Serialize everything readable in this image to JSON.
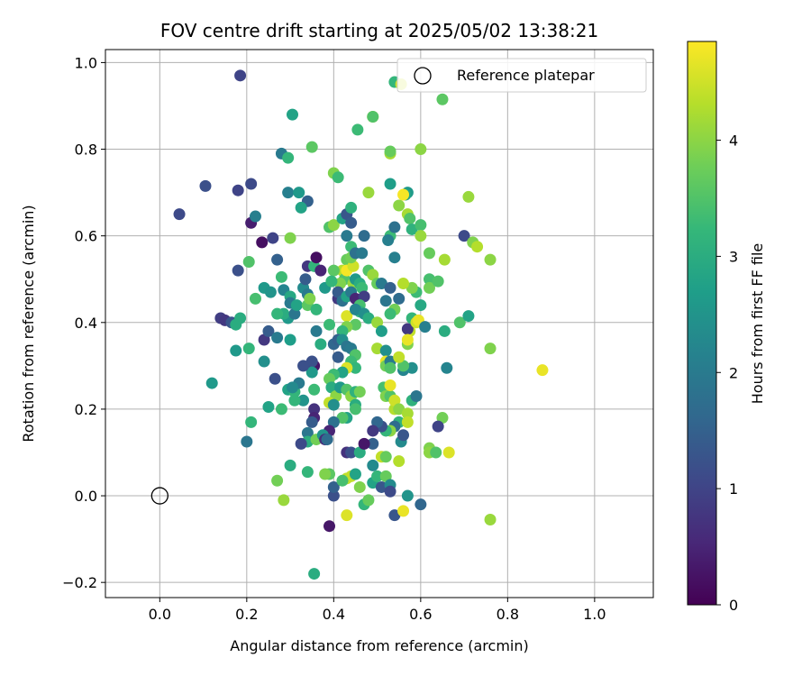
{
  "chart_data": {
    "type": "scatter",
    "title": "FOV centre drift starting at 2025/05/02 13:38:21",
    "xlabel": "Angular distance from reference (arcmin)",
    "ylabel": "Rotation from reference (arcmin)",
    "xlim": [
      -0.125,
      1.135
    ],
    "ylim": [
      -0.235,
      1.03
    ],
    "xticks": [
      0.0,
      0.2,
      0.4,
      0.6,
      0.8,
      1.0
    ],
    "xtick_labels": [
      "0.0",
      "0.2",
      "0.4",
      "0.6",
      "0.8",
      "1.0"
    ],
    "yticks": [
      -0.2,
      0.0,
      0.2,
      0.4,
      0.6,
      0.8,
      1.0
    ],
    "ytick_labels": [
      "−0.2",
      "0.0",
      "0.2",
      "0.4",
      "0.6",
      "0.8",
      "1.0"
    ],
    "grid": true,
    "legend": {
      "placement": "upper right",
      "entries": [
        "Reference platepar"
      ]
    },
    "reference_point": {
      "name": "Reference platepar",
      "x": 0.0,
      "y": 0.0
    },
    "colorbar": {
      "label": "Hours from first FF file",
      "min": 0.0,
      "max": 4.85,
      "ticks": [
        0,
        1,
        2,
        3,
        4
      ],
      "tick_labels": [
        "0",
        "1",
        "2",
        "3",
        "4"
      ],
      "colormap": [
        "#440154",
        "#482878",
        "#3e4989",
        "#31688e",
        "#26828e",
        "#1f9e89",
        "#35b779",
        "#6ece58",
        "#b5de2b",
        "#fde725"
      ]
    },
    "points": [
      [
        0.185,
        0.97,
        1.0
      ],
      [
        0.045,
        0.65,
        1.1
      ],
      [
        0.105,
        0.715,
        1.2
      ],
      [
        0.18,
        0.705,
        1.0
      ],
      [
        0.21,
        0.72,
        1.1
      ],
      [
        0.21,
        0.63,
        0.4
      ],
      [
        0.22,
        0.645,
        2.1
      ],
      [
        0.26,
        0.595,
        1.0
      ],
      [
        0.235,
        0.585,
        0.2
      ],
      [
        0.205,
        0.54,
        3.5
      ],
      [
        0.18,
        0.52,
        1.2
      ],
      [
        0.22,
        0.455,
        3.4
      ],
      [
        0.24,
        0.48,
        2.6
      ],
      [
        0.255,
        0.47,
        2.5
      ],
      [
        0.14,
        0.41,
        0.9
      ],
      [
        0.15,
        0.405,
        0.8
      ],
      [
        0.165,
        0.4,
        1.3
      ],
      [
        0.175,
        0.395,
        3.0
      ],
      [
        0.185,
        0.41,
        3.0
      ],
      [
        0.175,
        0.335,
        2.6
      ],
      [
        0.205,
        0.34,
        3.2
      ],
      [
        0.24,
        0.36,
        0.8
      ],
      [
        0.25,
        0.38,
        1.4
      ],
      [
        0.24,
        0.31,
        2.4
      ],
      [
        0.27,
        0.365,
        2.0
      ],
      [
        0.3,
        0.36,
        2.7
      ],
      [
        0.265,
        0.27,
        1.2
      ],
      [
        0.295,
        0.245,
        2.8
      ],
      [
        0.31,
        0.24,
        3.2
      ],
      [
        0.12,
        0.26,
        2.6
      ],
      [
        0.21,
        0.17,
        3.2
      ],
      [
        0.2,
        0.125,
        1.9
      ],
      [
        0.25,
        0.205,
        2.8
      ],
      [
        0.28,
        0.2,
        3.3
      ],
      [
        0.27,
        0.035,
        3.8
      ],
      [
        0.285,
        -0.01,
        4.1
      ],
      [
        0.3,
        0.07,
        3.0
      ],
      [
        0.305,
        0.88,
        2.8
      ],
      [
        0.28,
        0.79,
        2.0
      ],
      [
        0.295,
        0.78,
        3.2
      ],
      [
        0.295,
        0.7,
        2.1
      ],
      [
        0.32,
        0.7,
        2.6
      ],
      [
        0.34,
        0.68,
        1.5
      ],
      [
        0.325,
        0.665,
        2.8
      ],
      [
        0.35,
        0.805,
        3.6
      ],
      [
        0.3,
        0.595,
        3.9
      ],
      [
        0.27,
        0.545,
        1.5
      ],
      [
        0.28,
        0.505,
        3.3
      ],
      [
        0.285,
        0.475,
        2.2
      ],
      [
        0.3,
        0.46,
        2.9
      ],
      [
        0.3,
        0.445,
        2.0
      ],
      [
        0.295,
        0.41,
        2.6
      ],
      [
        0.285,
        0.42,
        3.0
      ],
      [
        0.27,
        0.42,
        3.2
      ],
      [
        0.31,
        0.42,
        1.9
      ],
      [
        0.315,
        0.44,
        2.8
      ],
      [
        0.33,
        0.48,
        2.3
      ],
      [
        0.34,
        0.465,
        2.0
      ],
      [
        0.34,
        0.44,
        3.6
      ],
      [
        0.345,
        0.455,
        3.9
      ],
      [
        0.335,
        0.5,
        1.4
      ],
      [
        0.34,
        0.53,
        0.8
      ],
      [
        0.355,
        0.53,
        3.2
      ],
      [
        0.36,
        0.55,
        0.2
      ],
      [
        0.37,
        0.52,
        0.5
      ],
      [
        0.38,
        0.48,
        2.6
      ],
      [
        0.36,
        0.43,
        3.2
      ],
      [
        0.36,
        0.38,
        2.0
      ],
      [
        0.37,
        0.35,
        3.0
      ],
      [
        0.355,
        0.3,
        0.3
      ],
      [
        0.35,
        0.31,
        1.2
      ],
      [
        0.35,
        0.285,
        2.6
      ],
      [
        0.33,
        0.3,
        1.2
      ],
      [
        0.32,
        0.26,
        2.0
      ],
      [
        0.33,
        0.22,
        2.5
      ],
      [
        0.31,
        0.22,
        3.2
      ],
      [
        0.305,
        0.25,
        2.3
      ],
      [
        0.355,
        0.245,
        3.3
      ],
      [
        0.355,
        0.2,
        0.7
      ],
      [
        0.355,
        0.18,
        0.5
      ],
      [
        0.35,
        0.17,
        1.4
      ],
      [
        0.34,
        0.145,
        1.9
      ],
      [
        0.34,
        0.125,
        3.0
      ],
      [
        0.325,
        0.12,
        1.1
      ],
      [
        0.36,
        0.13,
        3.8
      ],
      [
        0.34,
        0.055,
        3.2
      ],
      [
        0.355,
        -0.18,
        3.0
      ],
      [
        0.39,
        -0.07,
        0.3
      ],
      [
        0.39,
        0.05,
        3.6
      ],
      [
        0.38,
        0.05,
        3.9
      ],
      [
        0.4,
        0.0,
        1.2
      ],
      [
        0.4,
        0.02,
        1.5
      ],
      [
        0.39,
        0.395,
        3.3
      ],
      [
        0.4,
        0.35,
        1.6
      ],
      [
        0.41,
        0.32,
        1.4
      ],
      [
        0.4,
        0.745,
        3.9
      ],
      [
        0.41,
        0.735,
        3.3
      ],
      [
        0.39,
        0.62,
        3.5
      ],
      [
        0.4,
        0.625,
        4.0
      ],
      [
        0.42,
        0.64,
        2.8
      ],
      [
        0.43,
        0.65,
        1.3
      ],
      [
        0.44,
        0.63,
        1.4
      ],
      [
        0.44,
        0.665,
        3.1
      ],
      [
        0.43,
        0.6,
        2.0
      ],
      [
        0.44,
        0.575,
        3.3
      ],
      [
        0.43,
        0.545,
        3.7
      ],
      [
        0.42,
        0.52,
        4.3
      ],
      [
        0.425,
        0.5,
        3.5
      ],
      [
        0.415,
        0.49,
        3.9
      ],
      [
        0.43,
        0.52,
        4.8
      ],
      [
        0.445,
        0.49,
        4.1
      ],
      [
        0.445,
        0.53,
        4.5
      ],
      [
        0.4,
        0.52,
        3.6
      ],
      [
        0.395,
        0.495,
        3.2
      ],
      [
        0.41,
        0.455,
        0.8
      ],
      [
        0.41,
        0.47,
        1.4
      ],
      [
        0.42,
        0.45,
        1.8
      ],
      [
        0.43,
        0.46,
        2.8
      ],
      [
        0.43,
        0.415,
        4.6
      ],
      [
        0.44,
        0.47,
        2.0
      ],
      [
        0.45,
        0.455,
        0.5
      ],
      [
        0.45,
        0.5,
        2.6
      ],
      [
        0.46,
        0.49,
        3.0
      ],
      [
        0.465,
        0.48,
        3.3
      ],
      [
        0.47,
        0.46,
        0.9
      ],
      [
        0.46,
        0.44,
        3.4
      ],
      [
        0.46,
        0.425,
        3.1
      ],
      [
        0.45,
        0.43,
        2.2
      ],
      [
        0.47,
        0.42,
        2.4
      ],
      [
        0.48,
        0.41,
        3.0
      ],
      [
        0.45,
        0.395,
        3.6
      ],
      [
        0.43,
        0.39,
        3.9
      ],
      [
        0.42,
        0.38,
        3.2
      ],
      [
        0.41,
        0.36,
        1.5
      ],
      [
        0.42,
        0.36,
        2.4
      ],
      [
        0.43,
        0.345,
        1.9
      ],
      [
        0.44,
        0.34,
        2.0
      ],
      [
        0.45,
        0.325,
        3.5
      ],
      [
        0.44,
        0.31,
        3.3
      ],
      [
        0.45,
        0.295,
        3.2
      ],
      [
        0.43,
        0.295,
        4.6
      ],
      [
        0.42,
        0.285,
        2.8
      ],
      [
        0.4,
        0.28,
        3.3
      ],
      [
        0.39,
        0.27,
        3.7
      ],
      [
        0.395,
        0.25,
        3.0
      ],
      [
        0.405,
        0.23,
        4.0
      ],
      [
        0.39,
        0.215,
        4.4
      ],
      [
        0.4,
        0.21,
        2.4
      ],
      [
        0.415,
        0.25,
        2.6
      ],
      [
        0.43,
        0.245,
        3.5
      ],
      [
        0.44,
        0.23,
        4.0
      ],
      [
        0.45,
        0.24,
        3.1
      ],
      [
        0.46,
        0.24,
        3.8
      ],
      [
        0.45,
        0.21,
        3.0
      ],
      [
        0.45,
        0.2,
        3.4
      ],
      [
        0.43,
        0.18,
        2.8
      ],
      [
        0.42,
        0.18,
        3.5
      ],
      [
        0.4,
        0.17,
        1.8
      ],
      [
        0.39,
        0.15,
        0.5
      ],
      [
        0.375,
        0.14,
        2.5
      ],
      [
        0.38,
        0.13,
        0.6
      ],
      [
        0.385,
        0.13,
        1.7
      ],
      [
        0.43,
        0.1,
        0.7
      ],
      [
        0.44,
        0.1,
        1.2
      ],
      [
        0.46,
        0.1,
        3.0
      ],
      [
        0.44,
        0.045,
        4.4
      ],
      [
        0.43,
        0.04,
        4.4
      ],
      [
        0.42,
        0.035,
        3.4
      ],
      [
        0.45,
        0.05,
        2.8
      ],
      [
        0.46,
        0.02,
        3.9
      ],
      [
        0.47,
        -0.02,
        3.2
      ],
      [
        0.48,
        -0.01,
        3.7
      ],
      [
        0.49,
        0.03,
        2.8
      ],
      [
        0.5,
        0.045,
        3.2
      ],
      [
        0.51,
        0.02,
        1.3
      ],
      [
        0.52,
        0.045,
        3.7
      ],
      [
        0.53,
        0.025,
        2.3
      ],
      [
        0.53,
        0.01,
        1.1
      ],
      [
        0.54,
        -0.045,
        1.3
      ],
      [
        0.56,
        -0.035,
        4.7
      ],
      [
        0.57,
        0.0,
        2.5
      ],
      [
        0.43,
        -0.045,
        4.6
      ],
      [
        0.44,
        0.55,
        3.8
      ],
      [
        0.45,
        0.56,
        1.8
      ],
      [
        0.465,
        0.56,
        2.0
      ],
      [
        0.47,
        0.6,
        1.7
      ],
      [
        0.48,
        0.7,
        4.1
      ],
      [
        0.49,
        0.875,
        4.6
      ],
      [
        0.49,
        0.875,
        3.5
      ],
      [
        0.455,
        0.845,
        3.3
      ],
      [
        0.48,
        0.52,
        3.5
      ],
      [
        0.49,
        0.51,
        4.1
      ],
      [
        0.5,
        0.49,
        3.7
      ],
      [
        0.51,
        0.49,
        2.0
      ],
      [
        0.5,
        0.4,
        4.1
      ],
      [
        0.5,
        0.34,
        4.2
      ],
      [
        0.51,
        0.38,
        2.7
      ],
      [
        0.52,
        0.335,
        2.4
      ],
      [
        0.52,
        0.31,
        4.7
      ],
      [
        0.52,
        0.3,
        3.8
      ],
      [
        0.53,
        0.31,
        2.0
      ],
      [
        0.53,
        0.295,
        3.5
      ],
      [
        0.515,
        0.25,
        3.4
      ],
      [
        0.52,
        0.23,
        3.9
      ],
      [
        0.53,
        0.23,
        3.5
      ],
      [
        0.53,
        0.255,
        4.7
      ],
      [
        0.54,
        0.2,
        4.3
      ],
      [
        0.54,
        0.22,
        4.5
      ],
      [
        0.55,
        0.2,
        4.0
      ],
      [
        0.55,
        0.17,
        3.1
      ],
      [
        0.54,
        0.16,
        1.7
      ],
      [
        0.53,
        0.15,
        4.0
      ],
      [
        0.52,
        0.15,
        3.2
      ],
      [
        0.51,
        0.16,
        1.2
      ],
      [
        0.5,
        0.17,
        1.6
      ],
      [
        0.49,
        0.15,
        0.8
      ],
      [
        0.49,
        0.12,
        1.5
      ],
      [
        0.47,
        0.12,
        0.3
      ],
      [
        0.49,
        0.07,
        2.3
      ],
      [
        0.51,
        0.09,
        4.4
      ],
      [
        0.52,
        0.09,
        3.7
      ],
      [
        0.55,
        0.08,
        4.3
      ],
      [
        0.555,
        0.125,
        2.3
      ],
      [
        0.56,
        0.14,
        1.3
      ],
      [
        0.57,
        0.19,
        4.2
      ],
      [
        0.57,
        0.17,
        4.4
      ],
      [
        0.58,
        0.22,
        3.1
      ],
      [
        0.59,
        0.23,
        1.9
      ],
      [
        0.56,
        0.29,
        2.2
      ],
      [
        0.58,
        0.295,
        2.4
      ],
      [
        0.56,
        0.3,
        3.5
      ],
      [
        0.55,
        0.32,
        4.4
      ],
      [
        0.57,
        0.35,
        3.9
      ],
      [
        0.575,
        0.38,
        4.4
      ],
      [
        0.57,
        0.385,
        0.8
      ],
      [
        0.57,
        0.36,
        4.7
      ],
      [
        0.58,
        0.41,
        3.2
      ],
      [
        0.59,
        0.4,
        4.5
      ],
      [
        0.595,
        0.405,
        4.7
      ],
      [
        0.61,
        0.39,
        2.1
      ],
      [
        0.6,
        0.44,
        2.9
      ],
      [
        0.59,
        0.47,
        3.3
      ],
      [
        0.58,
        0.48,
        3.9
      ],
      [
        0.56,
        0.49,
        4.3
      ],
      [
        0.55,
        0.455,
        1.7
      ],
      [
        0.54,
        0.43,
        3.8
      ],
      [
        0.53,
        0.42,
        3.3
      ],
      [
        0.52,
        0.45,
        1.9
      ],
      [
        0.53,
        0.48,
        1.5
      ],
      [
        0.54,
        0.55,
        2.1
      ],
      [
        0.53,
        0.6,
        3.3
      ],
      [
        0.525,
        0.59,
        2.1
      ],
      [
        0.54,
        0.62,
        1.8
      ],
      [
        0.57,
        0.7,
        2.6
      ],
      [
        0.565,
        0.695,
        2.8
      ],
      [
        0.56,
        0.695,
        4.8
      ],
      [
        0.55,
        0.67,
        4.0
      ],
      [
        0.53,
        0.72,
        2.7
      ],
      [
        0.53,
        0.79,
        4.2
      ],
      [
        0.53,
        0.795,
        3.7
      ],
      [
        0.6,
        0.8,
        4.0
      ],
      [
        0.54,
        0.955,
        3.2
      ],
      [
        0.555,
        0.95,
        4.5
      ],
      [
        0.65,
        0.915,
        3.6
      ],
      [
        0.57,
        0.65,
        4.2
      ],
      [
        0.575,
        0.64,
        3.5
      ],
      [
        0.58,
        0.615,
        3.1
      ],
      [
        0.6,
        0.625,
        3.4
      ],
      [
        0.62,
        0.56,
        3.7
      ],
      [
        0.62,
        0.5,
        3.4
      ],
      [
        0.62,
        0.48,
        3.8
      ],
      [
        0.64,
        0.495,
        3.5
      ],
      [
        0.655,
        0.38,
        3.0
      ],
      [
        0.65,
        0.18,
        3.8
      ],
      [
        0.64,
        0.16,
        1.0
      ],
      [
        0.62,
        0.11,
        3.9
      ],
      [
        0.62,
        0.1,
        4.0
      ],
      [
        0.635,
        0.1,
        3.5
      ],
      [
        0.665,
        0.1,
        4.6
      ],
      [
        0.6,
        -0.02,
        1.6
      ],
      [
        0.6,
        0.6,
        4.1
      ],
      [
        0.655,
        0.545,
        4.2
      ],
      [
        0.66,
        0.295,
        2.2
      ],
      [
        0.69,
        0.4,
        3.5
      ],
      [
        0.7,
        0.6,
        1.1
      ],
      [
        0.71,
        0.415,
        2.8
      ],
      [
        0.71,
        0.69,
        4.1
      ],
      [
        0.72,
        0.585,
        3.9
      ],
      [
        0.73,
        0.575,
        4.3
      ],
      [
        0.76,
        0.545,
        4.0
      ],
      [
        0.76,
        0.34,
        3.9
      ],
      [
        0.76,
        -0.055,
        4.1
      ],
      [
        0.88,
        0.29,
        4.7
      ]
    ]
  }
}
